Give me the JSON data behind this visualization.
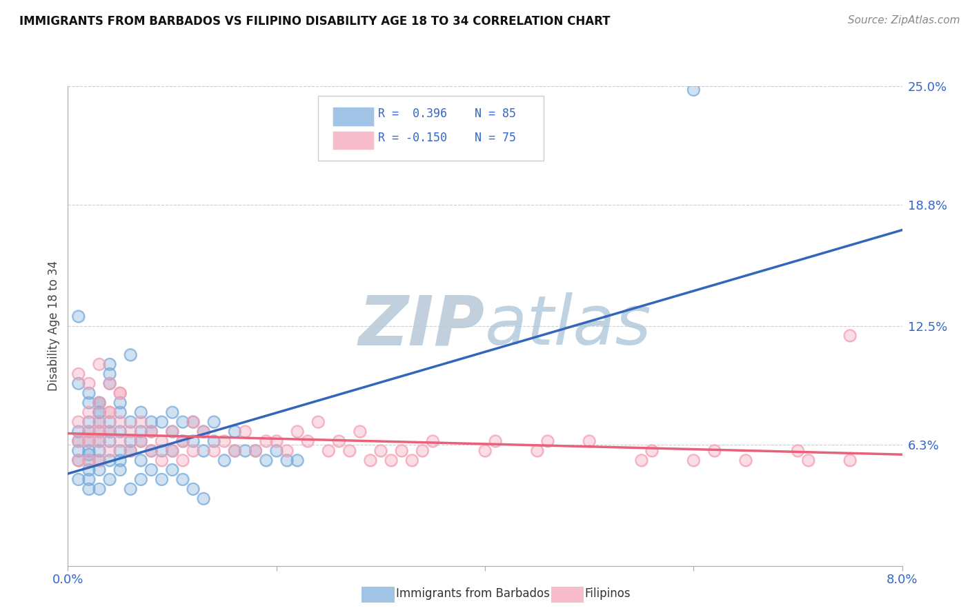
{
  "title": "IMMIGRANTS FROM BARBADOS VS FILIPINO DISABILITY AGE 18 TO 34 CORRELATION CHART",
  "source": "Source: ZipAtlas.com",
  "ylabel": "Disability Age 18 to 34",
  "xlim": [
    0.0,
    0.08
  ],
  "ylim": [
    0.0,
    0.25
  ],
  "ytick_labels": [
    "6.3%",
    "12.5%",
    "18.8%",
    "25.0%"
  ],
  "ytick_positions": [
    0.063,
    0.125,
    0.188,
    0.25
  ],
  "blue_R": 0.396,
  "blue_N": 85,
  "pink_R": -0.15,
  "pink_N": 75,
  "blue_color": "#7aacdc",
  "pink_color": "#f4a0b5",
  "blue_line_color": "#3366bb",
  "pink_line_color": "#e8607a",
  "title_color": "#111111",
  "source_color": "#888888",
  "axis_label_color": "#3366cc",
  "watermark_color": "#ccdde8",
  "legend_label_blue": "Immigrants from Barbados",
  "legend_label_pink": "Filipinos",
  "blue_line": {
    "x0": 0.0,
    "x1": 0.08,
    "y0": 0.048,
    "y1": 0.175
  },
  "pink_line": {
    "x0": 0.0,
    "x1": 0.08,
    "y0": 0.069,
    "y1": 0.058
  },
  "blue_x": [
    0.001,
    0.001,
    0.001,
    0.001,
    0.001,
    0.002,
    0.002,
    0.002,
    0.002,
    0.002,
    0.002,
    0.002,
    0.002,
    0.002,
    0.003,
    0.003,
    0.003,
    0.003,
    0.003,
    0.003,
    0.003,
    0.003,
    0.003,
    0.004,
    0.004,
    0.004,
    0.004,
    0.004,
    0.004,
    0.005,
    0.005,
    0.005,
    0.005,
    0.005,
    0.006,
    0.006,
    0.006,
    0.006,
    0.007,
    0.007,
    0.007,
    0.007,
    0.008,
    0.008,
    0.008,
    0.009,
    0.009,
    0.01,
    0.01,
    0.01,
    0.011,
    0.011,
    0.012,
    0.012,
    0.013,
    0.013,
    0.014,
    0.014,
    0.015,
    0.016,
    0.016,
    0.017,
    0.018,
    0.019,
    0.02,
    0.021,
    0.022,
    0.001,
    0.001,
    0.002,
    0.002,
    0.003,
    0.003,
    0.004,
    0.004,
    0.005,
    0.006,
    0.007,
    0.008,
    0.009,
    0.01,
    0.011,
    0.012,
    0.013,
    0.06
  ],
  "blue_y": [
    0.045,
    0.055,
    0.06,
    0.065,
    0.07,
    0.04,
    0.05,
    0.055,
    0.06,
    0.065,
    0.07,
    0.075,
    0.058,
    0.045,
    0.05,
    0.055,
    0.06,
    0.065,
    0.07,
    0.075,
    0.08,
    0.085,
    0.04,
    0.055,
    0.065,
    0.075,
    0.095,
    0.1,
    0.045,
    0.055,
    0.06,
    0.07,
    0.08,
    0.05,
    0.06,
    0.065,
    0.075,
    0.11,
    0.055,
    0.065,
    0.07,
    0.08,
    0.06,
    0.07,
    0.075,
    0.06,
    0.075,
    0.06,
    0.07,
    0.08,
    0.065,
    0.075,
    0.065,
    0.075,
    0.06,
    0.07,
    0.065,
    0.075,
    0.055,
    0.06,
    0.07,
    0.06,
    0.06,
    0.055,
    0.06,
    0.055,
    0.055,
    0.13,
    0.095,
    0.09,
    0.085,
    0.085,
    0.08,
    0.105,
    0.07,
    0.085,
    0.04,
    0.045,
    0.05,
    0.045,
    0.05,
    0.045,
    0.04,
    0.035,
    0.248
  ],
  "pink_x": [
    0.001,
    0.001,
    0.001,
    0.002,
    0.002,
    0.002,
    0.002,
    0.003,
    0.003,
    0.003,
    0.003,
    0.004,
    0.004,
    0.004,
    0.005,
    0.005,
    0.005,
    0.006,
    0.006,
    0.007,
    0.007,
    0.008,
    0.008,
    0.009,
    0.009,
    0.01,
    0.01,
    0.011,
    0.011,
    0.012,
    0.012,
    0.013,
    0.014,
    0.015,
    0.016,
    0.017,
    0.018,
    0.019,
    0.02,
    0.021,
    0.022,
    0.023,
    0.024,
    0.025,
    0.026,
    0.027,
    0.028,
    0.029,
    0.03,
    0.031,
    0.032,
    0.033,
    0.034,
    0.035,
    0.04,
    0.041,
    0.045,
    0.046,
    0.05,
    0.055,
    0.056,
    0.06,
    0.062,
    0.065,
    0.07,
    0.071,
    0.075,
    0.003,
    0.004,
    0.005,
    0.001,
    0.002,
    0.003,
    0.004,
    0.075
  ],
  "pink_y": [
    0.075,
    0.065,
    0.055,
    0.08,
    0.07,
    0.065,
    0.055,
    0.075,
    0.07,
    0.065,
    0.055,
    0.08,
    0.07,
    0.06,
    0.09,
    0.075,
    0.065,
    0.07,
    0.06,
    0.075,
    0.065,
    0.07,
    0.06,
    0.065,
    0.055,
    0.07,
    0.06,
    0.065,
    0.055,
    0.075,
    0.06,
    0.07,
    0.06,
    0.065,
    0.06,
    0.07,
    0.06,
    0.065,
    0.065,
    0.06,
    0.07,
    0.065,
    0.075,
    0.06,
    0.065,
    0.06,
    0.07,
    0.055,
    0.06,
    0.055,
    0.06,
    0.055,
    0.06,
    0.065,
    0.06,
    0.065,
    0.06,
    0.065,
    0.065,
    0.055,
    0.06,
    0.055,
    0.06,
    0.055,
    0.06,
    0.055,
    0.055,
    0.105,
    0.095,
    0.09,
    0.1,
    0.095,
    0.085,
    0.08,
    0.12
  ],
  "figsize": [
    14.06,
    8.92
  ],
  "dpi": 100
}
